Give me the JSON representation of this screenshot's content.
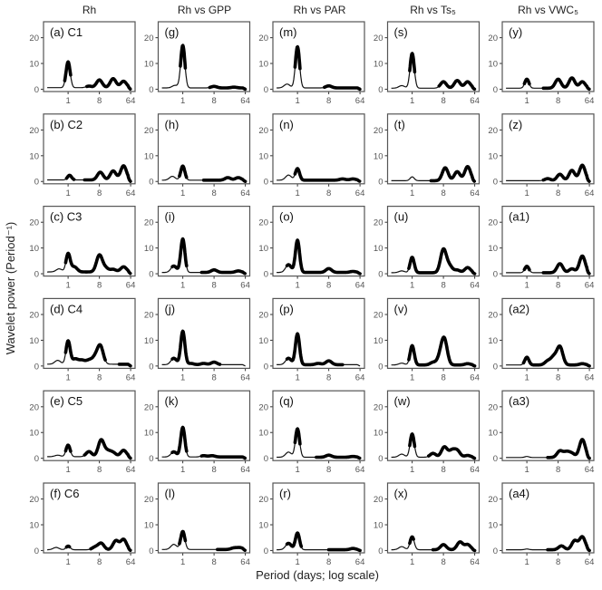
{
  "chart_data": {
    "type": "line",
    "xlabel": "Period (days; log scale)",
    "ylabel": "Wavelet power (Period⁻¹)",
    "xscale": "log2",
    "xlim": [
      0.195,
      86
    ],
    "ylim": [
      -0.9,
      26.2
    ],
    "xticks": [
      1,
      8,
      64
    ],
    "xtick_labels": [
      "1",
      "8",
      "64"
    ],
    "yticks": [
      0,
      10,
      20
    ],
    "ytick_labels": [
      "0",
      "10",
      "20"
    ],
    "columns": [
      "Rh",
      "Rh vs GPP",
      "Rh vs PAR",
      "Rh vs Ts₅",
      "Rh vs VWC₅"
    ],
    "note": "each panel curve = baseline + peaks [period_days, power]; thick line marks significant period ranges",
    "panels": [
      [
        {
          "label": "(a) C1",
          "base": 0.6,
          "peaks": [
            [
              1,
              10
            ],
            [
              4,
              0.6
            ],
            [
              8,
              3
            ],
            [
              20,
              3.5
            ],
            [
              40,
              2.5
            ]
          ],
          "thick": [
            [
              0.8,
              1.2
            ],
            [
              3.5,
              64
            ]
          ]
        },
        {
          "label": "(b) C2",
          "base": 0.6,
          "peaks": [
            [
              1.1,
              1.8
            ],
            [
              8.5,
              3
            ],
            [
              20,
              3.5
            ],
            [
              40,
              5.5
            ]
          ],
          "thick": [
            [
              0.9,
              1.5
            ],
            [
              3,
              64
            ]
          ]
        },
        {
          "label": "(c) C3",
          "base": 0.7,
          "peaks": [
            [
              0.55,
              1.2
            ],
            [
              1,
              7
            ],
            [
              1.5,
              2
            ],
            [
              8,
              6.5
            ],
            [
              12,
              1.5
            ],
            [
              20,
              1
            ],
            [
              40,
              2
            ]
          ],
          "thick": [
            [
              0.85,
              64
            ]
          ]
        },
        {
          "label": "(d) C4",
          "base": 0.7,
          "peaks": [
            [
              0.5,
              1.5
            ],
            [
              1,
              9
            ],
            [
              1.6,
              2
            ],
            [
              2.5,
              1.5
            ],
            [
              4,
              1.5
            ],
            [
              6,
              2.5
            ],
            [
              8.5,
              7
            ]
          ],
          "thick": [
            [
              0.85,
              12
            ],
            [
              30,
              64
            ]
          ]
        },
        {
          "label": "(e) C5",
          "base": 0.6,
          "peaks": [
            [
              0.5,
              0.6
            ],
            [
              1,
              4.5
            ],
            [
              4,
              2
            ],
            [
              9,
              6.5
            ],
            [
              14,
              2
            ],
            [
              20,
              1.5
            ],
            [
              40,
              2.5
            ]
          ],
          "thick": [
            [
              0.85,
              1.2
            ],
            [
              3,
              64
            ]
          ]
        },
        {
          "label": "(f) C6",
          "base": 0.3,
          "peaks": [
            [
              0.45,
              0.9
            ],
            [
              1,
              1.4
            ],
            [
              6,
              1
            ],
            [
              9,
              2.5
            ],
            [
              24,
              3.5
            ],
            [
              40,
              4
            ]
          ],
          "thick": [
            [
              0.9,
              1.1
            ],
            [
              4.5,
              64
            ]
          ]
        }
      ],
      [
        {
          "label": "(g)",
          "base": 0.5,
          "peaks": [
            [
              0.6,
              1
            ],
            [
              1,
              16.5
            ],
            [
              8,
              0.6
            ],
            [
              30,
              0.3
            ]
          ],
          "thick": [
            [
              0.85,
              1.2
            ],
            [
              6,
              64
            ]
          ]
        },
        {
          "label": "(h)",
          "base": 0.5,
          "peaks": [
            [
              0.5,
              1.5
            ],
            [
              1,
              5.5
            ],
            [
              20,
              1
            ],
            [
              40,
              1
            ]
          ],
          "thick": [
            [
              0.8,
              1.3
            ],
            [
              4,
              64
            ]
          ]
        },
        {
          "label": "(i)",
          "base": 0.5,
          "peaks": [
            [
              0.55,
              2.5
            ],
            [
              1,
              13
            ],
            [
              8,
              1
            ],
            [
              40,
              0.6
            ]
          ],
          "thick": [
            [
              0.5,
              1.3
            ],
            [
              3.5,
              64
            ]
          ]
        },
        {
          "label": "(j)",
          "base": 0.5,
          "peaks": [
            [
              0.55,
              2.5
            ],
            [
              1,
              13
            ],
            [
              1.7,
              0.5
            ],
            [
              4,
              0.5
            ],
            [
              8,
              1
            ]
          ],
          "thick": [
            [
              0.5,
              12
            ]
          ]
        },
        {
          "label": "(k)",
          "base": 0.5,
          "peaks": [
            [
              0.55,
              2
            ],
            [
              1,
              11.5
            ],
            [
              4,
              0.5
            ],
            [
              7,
              0.5
            ]
          ],
          "thick": [
            [
              0.5,
              1.3
            ],
            [
              3.5,
              64
            ]
          ]
        },
        {
          "label": "(l)",
          "base": 0.4,
          "peaks": [
            [
              0.55,
              2
            ],
            [
              1,
              7
            ],
            [
              30,
              0.6
            ],
            [
              45,
              0.7
            ]
          ],
          "thick": [
            [
              0.8,
              1.2
            ],
            [
              10,
              64
            ]
          ]
        }
      ],
      [
        {
          "label": "(m)",
          "base": 0.5,
          "peaks": [
            [
              0.5,
              1.5
            ],
            [
              1,
              16
            ],
            [
              8,
              0.8
            ]
          ],
          "thick": [
            [
              0.85,
              1.2
            ],
            [
              6,
              64
            ]
          ]
        },
        {
          "label": "(n)",
          "base": 0.5,
          "peaks": [
            [
              0.55,
              2
            ],
            [
              1,
              4.5
            ],
            [
              20,
              0.5
            ],
            [
              40,
              0.5
            ]
          ],
          "thick": [
            [
              0.85,
              64
            ]
          ]
        },
        {
          "label": "(o)",
          "base": 0.5,
          "peaks": [
            [
              0.55,
              3
            ],
            [
              1,
              12.5
            ],
            [
              8,
              1.5
            ],
            [
              40,
              0.4
            ]
          ],
          "thick": [
            [
              0.5,
              64
            ]
          ]
        },
        {
          "label": "(p)",
          "base": 0.5,
          "peaks": [
            [
              0.55,
              2.5
            ],
            [
              1,
              12
            ],
            [
              4,
              0.5
            ],
            [
              8,
              1.5
            ]
          ],
          "thick": [
            [
              0.5,
              20
            ]
          ]
        },
        {
          "label": "(q)",
          "base": 0.4,
          "peaks": [
            [
              0.55,
              2
            ],
            [
              1,
              11
            ],
            [
              8,
              0.8
            ],
            [
              40,
              0.3
            ]
          ],
          "thick": [
            [
              0.85,
              1.2
            ],
            [
              3.5,
              64
            ]
          ]
        },
        {
          "label": "(r)",
          "base": 0.3,
          "peaks": [
            [
              0.55,
              2.5
            ],
            [
              1,
              6.5
            ],
            [
              40,
              0.5
            ]
          ],
          "thick": [
            [
              0.5,
              1.3
            ],
            [
              8,
              64
            ]
          ]
        }
      ],
      [
        {
          "label": "(s)",
          "base": 0.4,
          "peaks": [
            [
              0.5,
              1
            ],
            [
              1,
              13.5
            ],
            [
              8,
              2.5
            ],
            [
              20,
              3
            ],
            [
              40,
              2.5
            ]
          ],
          "thick": [
            [
              0.85,
              1.2
            ],
            [
              6,
              64
            ]
          ]
        },
        {
          "label": "(t)",
          "base": 0.3,
          "peaks": [
            [
              1,
              1.5
            ],
            [
              9,
              5
            ],
            [
              20,
              3.5
            ],
            [
              40,
              5.5
            ]
          ],
          "thick": [
            [
              3.5,
              64
            ]
          ]
        },
        {
          "label": "(u)",
          "base": 0.4,
          "peaks": [
            [
              0.5,
              0.7
            ],
            [
              1,
              6
            ],
            [
              8,
              9
            ],
            [
              12,
              2.5
            ],
            [
              20,
              1
            ],
            [
              40,
              2
            ]
          ],
          "thick": [
            [
              0.8,
              64
            ]
          ]
        },
        {
          "label": "(v)",
          "base": 0.4,
          "peaks": [
            [
              0.5,
              0.7
            ],
            [
              1,
              7.5
            ],
            [
              4,
              1
            ],
            [
              6.5,
              3
            ],
            [
              8.5,
              9.5
            ],
            [
              40,
              0.5
            ]
          ],
          "thick": [
            [
              0.8,
              64
            ]
          ]
        },
        {
          "label": "(w)",
          "base": 0.4,
          "peaks": [
            [
              0.5,
              1.2
            ],
            [
              1,
              9
            ],
            [
              4,
              1.5
            ],
            [
              8.5,
              4
            ],
            [
              14,
              2.5
            ],
            [
              20,
              2.5
            ],
            [
              40,
              0.7
            ]
          ],
          "thick": [
            [
              0.85,
              1.2
            ],
            [
              3,
              64
            ]
          ]
        },
        {
          "label": "(x)",
          "base": 0.3,
          "peaks": [
            [
              0.5,
              1.2
            ],
            [
              1,
              5
            ],
            [
              8,
              2
            ],
            [
              24,
              3
            ],
            [
              40,
              2
            ]
          ],
          "thick": [
            [
              0.85,
              1.1
            ],
            [
              4,
              64
            ]
          ]
        }
      ],
      [
        {
          "label": "(y)",
          "base": 0.4,
          "peaks": [
            [
              1,
              3.5
            ],
            [
              8,
              3.5
            ],
            [
              20,
              4
            ],
            [
              40,
              2.5
            ]
          ],
          "thick": [
            [
              0.85,
              1.2
            ],
            [
              3,
              64
            ]
          ]
        },
        {
          "label": "(z)",
          "base": 0.3,
          "peaks": [
            [
              4,
              0.8
            ],
            [
              9,
              2.5
            ],
            [
              20,
              4
            ],
            [
              40,
              6
            ]
          ],
          "thick": [
            [
              3,
              64
            ]
          ]
        },
        {
          "label": "(a1)",
          "base": 0.4,
          "peaks": [
            [
              1,
              2.5
            ],
            [
              9,
              3.5
            ],
            [
              20,
              1.5
            ],
            [
              40,
              6.5
            ]
          ],
          "thick": [
            [
              0.85,
              1.2
            ],
            [
              3,
              64
            ]
          ]
        },
        {
          "label": "(a2)",
          "base": 0.4,
          "peaks": [
            [
              1,
              3
            ],
            [
              4,
              1.5
            ],
            [
              6,
              3
            ],
            [
              9,
              7
            ],
            [
              40,
              0.5
            ]
          ],
          "thick": [
            [
              0.8,
              64
            ]
          ]
        },
        {
          "label": "(a3)",
          "base": 0.3,
          "peaks": [
            [
              1,
              0.4
            ],
            [
              9,
              2.5
            ],
            [
              14,
              2
            ],
            [
              20,
              1.5
            ],
            [
              40,
              7
            ]
          ],
          "thick": [
            [
              4,
              64
            ]
          ]
        },
        {
          "label": "(a4)",
          "base": 0.3,
          "peaks": [
            [
              1,
              0.3
            ],
            [
              10,
              1.5
            ],
            [
              24,
              3.5
            ],
            [
              40,
              5
            ]
          ],
          "thick": [
            [
              4,
              64
            ]
          ]
        }
      ]
    ]
  }
}
